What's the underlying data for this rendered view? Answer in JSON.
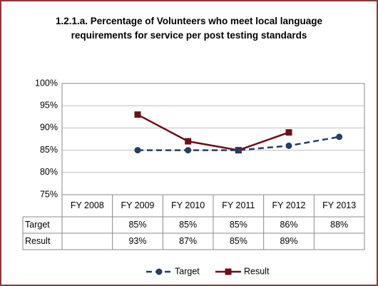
{
  "chart_data": {
    "type": "line",
    "title": "1.2.1.a. Percentage of Volunteers who meet local language requirements for service per post testing standards",
    "categories": [
      "FY 2008",
      "FY 2009",
      "FY 2010",
      "FY 2011",
      "FY 2012",
      "FY 2013"
    ],
    "series": [
      {
        "name": "Target",
        "color": "#243f60",
        "values": [
          null,
          85,
          85,
          85,
          86,
          88
        ],
        "value_labels": [
          null,
          "85%",
          "85%",
          "85%",
          "86%",
          "88%"
        ]
      },
      {
        "name": "Result",
        "color": "#6b0f1a",
        "values": [
          null,
          93,
          87,
          85,
          89,
          null
        ],
        "value_labels": [
          null,
          "93%",
          "87%",
          "85%",
          "89%",
          null
        ]
      }
    ],
    "ylim": [
      75,
      100
    ],
    "yticks": [
      {
        "value": 75,
        "label": "75%"
      },
      {
        "value": 80,
        "label": "80%"
      },
      {
        "value": 85,
        "label": "85%"
      },
      {
        "value": 90,
        "label": "90%"
      },
      {
        "value": 95,
        "label": "95%"
      },
      {
        "value": 100,
        "label": "100%"
      }
    ],
    "grid": true,
    "legend": "bottom"
  }
}
